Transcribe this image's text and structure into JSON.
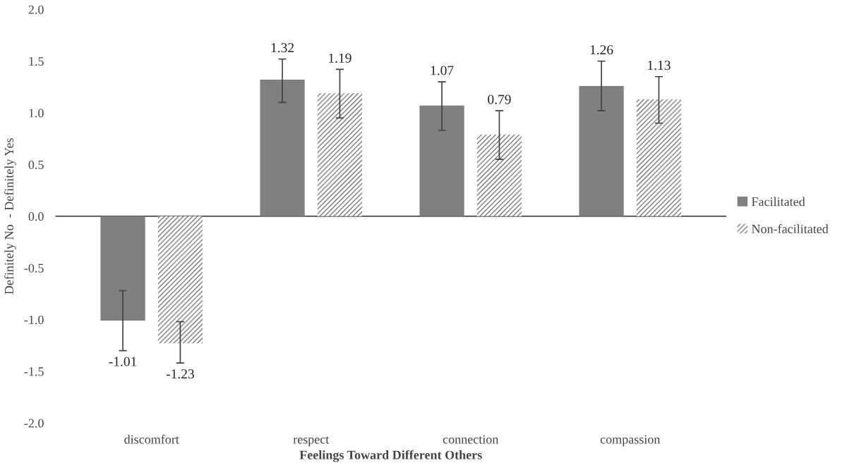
{
  "chart_data": {
    "type": "bar",
    "xlabel": "Feelings Toward Different Others",
    "ylabel": "Definitely No  - Definitely Yes",
    "categories": [
      "discomfort",
      "respect",
      "connection",
      "compassion"
    ],
    "series": [
      {
        "name": "Facilitated",
        "color": "#808080",
        "values": [
          -1.01,
          1.32,
          1.07,
          1.26
        ],
        "errors": [
          [
            -1.3,
            -0.72
          ],
          [
            1.1,
            1.52
          ],
          [
            0.83,
            1.3
          ],
          [
            1.02,
            1.5
          ]
        ]
      },
      {
        "name": "Non-facilitated",
        "color": "#555555",
        "values": [
          -1.23,
          1.19,
          0.79,
          1.13
        ],
        "errors": [
          [
            -1.42,
            -1.02
          ],
          [
            0.95,
            1.42
          ],
          [
            0.55,
            1.02
          ],
          [
            0.9,
            1.35
          ]
        ]
      }
    ],
    "ylim": [
      -2.0,
      2.0
    ],
    "yticks": [
      {
        "value": -2,
        "label": "-2.0"
      },
      {
        "value": -1.5,
        "label": "-1.5"
      },
      {
        "value": -1,
        "label": "-1.0"
      },
      {
        "value": -0.5,
        "label": "-0.5"
      },
      {
        "value": 0,
        "label": "0.0"
      },
      {
        "value": 0.5,
        "label": "0.5"
      },
      {
        "value": 1,
        "label": "1.0"
      },
      {
        "value": 1.5,
        "label": "1.5"
      },
      {
        "value": 2,
        "label": "2.0"
      }
    ],
    "data_labels": true,
    "legend": "right"
  }
}
